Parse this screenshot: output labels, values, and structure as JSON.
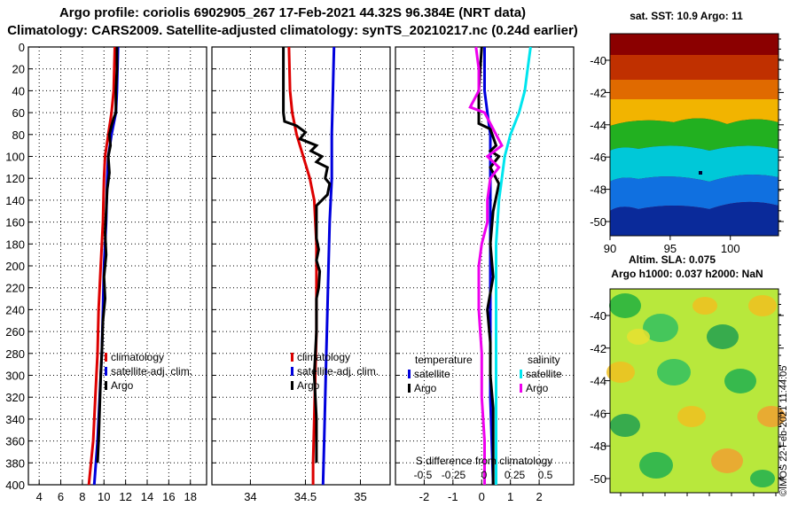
{
  "title_line1": "Argo profile: coriolis 6902905_267 17-Feb-2021 44.32S 96.384E (NRT data)",
  "title_line2": "Climatology: CARS2009. Satellite-adjusted climatology: synTS_20210217.nc (0.24d earlier)",
  "watermark": "©IMOS 22-Feb-2021 11:44:05",
  "colors": {
    "climatology": "#dd0000",
    "satellite": "#0000dd",
    "argo": "#000000",
    "cyan": "#00e5ee",
    "magenta": "#ee00ee"
  },
  "chart_data": [
    {
      "type": "line",
      "name": "temperature-profile",
      "xlim": [
        3,
        19.5
      ],
      "ylim": [
        400,
        0
      ],
      "xticks": [
        4,
        6,
        8,
        10,
        12,
        14,
        16,
        18
      ],
      "yticks": [
        0,
        20,
        40,
        60,
        80,
        100,
        120,
        140,
        160,
        180,
        200,
        220,
        240,
        260,
        280,
        300,
        320,
        340,
        360,
        380,
        400
      ],
      "legend": [
        "climatology",
        "satellite-adj. clim.",
        "Argo"
      ],
      "series": [
        {
          "name": "climatology",
          "color": "#dd0000",
          "points": [
            [
              11,
              0
            ],
            [
              10.9,
              40
            ],
            [
              10.7,
              60
            ],
            [
              10.4,
              80
            ],
            [
              10.1,
              100
            ],
            [
              10,
              120
            ],
            [
              9.9,
              160
            ],
            [
              9.7,
              200
            ],
            [
              9.5,
              240
            ],
            [
              9.4,
              280
            ],
            [
              9.2,
              320
            ],
            [
              9,
              360
            ],
            [
              8.6,
              400
            ]
          ]
        },
        {
          "name": "satellite-adj. clim.",
          "color": "#0000dd",
          "points": [
            [
              11.3,
              0
            ],
            [
              11.2,
              40
            ],
            [
              11.1,
              60
            ],
            [
              10.7,
              80
            ],
            [
              10.4,
              100
            ],
            [
              10.3,
              120
            ],
            [
              10.2,
              160
            ],
            [
              10,
              200
            ],
            [
              9.9,
              240
            ],
            [
              9.8,
              280
            ],
            [
              9.6,
              320
            ],
            [
              9.4,
              360
            ],
            [
              9.1,
              400
            ]
          ]
        },
        {
          "name": "Argo",
          "color": "#000000",
          "points": [
            [
              11.2,
              0
            ],
            [
              11.2,
              20
            ],
            [
              11.1,
              40
            ],
            [
              11.1,
              60
            ],
            [
              10.9,
              65
            ],
            [
              10.7,
              72
            ],
            [
              10.5,
              80
            ],
            [
              10.6,
              90
            ],
            [
              10.4,
              100
            ],
            [
              10.5,
              115
            ],
            [
              10.3,
              130
            ],
            [
              10.2,
              150
            ],
            [
              10.1,
              170
            ],
            [
              10.2,
              190
            ],
            [
              10,
              210
            ],
            [
              10.1,
              230
            ],
            [
              9.9,
              250
            ],
            [
              9.8,
              280
            ],
            [
              9.7,
              300
            ],
            [
              9.6,
              330
            ],
            [
              9.5,
              360
            ],
            [
              9.4,
              380
            ]
          ]
        }
      ]
    },
    {
      "type": "line",
      "name": "salinity-profile",
      "xlim": [
        33.65,
        35.27
      ],
      "ylim": [
        400,
        0
      ],
      "xticks": [
        34,
        34.5,
        35
      ],
      "legend": [
        "climatology",
        "satellite-adj. clim.",
        "Argo"
      ],
      "series": [
        {
          "name": "climatology",
          "color": "#dd0000",
          "points": [
            [
              34.35,
              0
            ],
            [
              34.36,
              40
            ],
            [
              34.38,
              60
            ],
            [
              34.42,
              80
            ],
            [
              34.48,
              100
            ],
            [
              34.54,
              120
            ],
            [
              34.58,
              140
            ],
            [
              34.6,
              180
            ],
            [
              34.6,
              220
            ],
            [
              34.6,
              260
            ],
            [
              34.59,
              300
            ],
            [
              34.58,
              340
            ],
            [
              34.57,
              380
            ],
            [
              34.57,
              400
            ]
          ]
        },
        {
          "name": "satellite-adj. clim.",
          "color": "#0000dd",
          "points": [
            [
              34.76,
              0
            ],
            [
              34.75,
              40
            ],
            [
              34.74,
              80
            ],
            [
              34.74,
              120
            ],
            [
              34.72,
              160
            ],
            [
              34.71,
              200
            ],
            [
              34.7,
              240
            ],
            [
              34.69,
              280
            ],
            [
              34.68,
              320
            ],
            [
              34.67,
              360
            ],
            [
              34.66,
              400
            ]
          ]
        },
        {
          "name": "Argo",
          "color": "#000000",
          "points": [
            [
              34.3,
              0
            ],
            [
              34.3,
              60
            ],
            [
              34.31,
              68
            ],
            [
              34.42,
              72
            ],
            [
              34.5,
              78
            ],
            [
              34.45,
              84
            ],
            [
              34.6,
              90
            ],
            [
              34.55,
              95
            ],
            [
              34.65,
              100
            ],
            [
              34.6,
              105
            ],
            [
              34.7,
              110
            ],
            [
              34.68,
              120
            ],
            [
              34.72,
              125
            ],
            [
              34.7,
              135
            ],
            [
              34.6,
              145
            ],
            [
              34.6,
              160
            ],
            [
              34.6,
              175
            ],
            [
              34.62,
              185
            ],
            [
              34.6,
              195
            ],
            [
              34.63,
              205
            ],
            [
              34.62,
              220
            ],
            [
              34.6,
              230
            ],
            [
              34.6,
              260
            ],
            [
              34.58,
              300
            ],
            [
              34.6,
              340
            ],
            [
              34.6,
              380
            ]
          ]
        }
      ]
    },
    {
      "type": "line",
      "name": "difference-profile",
      "xlim": [
        -3,
        3.2
      ],
      "ylim": [
        400,
        0
      ],
      "xticks": [
        -2,
        -1,
        0,
        1,
        2
      ],
      "x2label": "S difference from climatology",
      "x2ticks": [
        -0.5,
        -0.25,
        0,
        0.25,
        0.5
      ],
      "x2_tick_labels": [
        "-0.5",
        "-0.25",
        "0",
        "0.25",
        "0.5"
      ],
      "legend_temperature": {
        "title": "temperature",
        "items": [
          "satellite",
          "Argo"
        ]
      },
      "legend_salinity": {
        "title": "salinity",
        "items": [
          "satellite",
          "Argo"
        ]
      },
      "series": [
        {
          "name": "temperature satellite",
          "color": "#0000dd",
          "points": [
            [
              0.1,
              0
            ],
            [
              0.1,
              40
            ],
            [
              0.2,
              60
            ],
            [
              0.3,
              80
            ],
            [
              0.3,
              100
            ],
            [
              0.3,
              140
            ],
            [
              0.3,
              200
            ],
            [
              0.3,
              260
            ],
            [
              0.3,
              320
            ],
            [
              0.4,
              400
            ]
          ]
        },
        {
          "name": "temperature Argo",
          "color": "#000000",
          "points": [
            [
              0,
              0
            ],
            [
              -0.1,
              40
            ],
            [
              -0.1,
              60
            ],
            [
              -0.1,
              70
            ],
            [
              0.3,
              75
            ],
            [
              0.5,
              90
            ],
            [
              0.3,
              95
            ],
            [
              0.6,
              100
            ],
            [
              0.3,
              110
            ],
            [
              0.6,
              125
            ],
            [
              0.4,
              150
            ],
            [
              0.3,
              180
            ],
            [
              0.4,
              210
            ],
            [
              0.2,
              240
            ],
            [
              0.3,
              270
            ],
            [
              0.3,
              300
            ],
            [
              0.4,
              330
            ],
            [
              0.4,
              360
            ],
            [
              0.4,
              400
            ]
          ]
        },
        {
          "name": "salinity satellite",
          "color": "#00e5ee",
          "points": [
            [
              1.7,
              0
            ],
            [
              1.6,
              20
            ],
            [
              1.5,
              40
            ],
            [
              1.3,
              60
            ],
            [
              1,
              80
            ],
            [
              0.8,
              100
            ],
            [
              0.7,
              120
            ],
            [
              0.6,
              140
            ],
            [
              0.5,
              180
            ],
            [
              0.5,
              240
            ],
            [
              0.5,
              300
            ],
            [
              0.5,
              360
            ],
            [
              0.5,
              400
            ]
          ]
        },
        {
          "name": "salinity Argo",
          "color": "#ee00ee",
          "points": [
            [
              -0.2,
              0
            ],
            [
              -0.1,
              20
            ],
            [
              -0.1,
              40
            ],
            [
              -0.4,
              55
            ],
            [
              0.1,
              60
            ],
            [
              0.3,
              70
            ],
            [
              0.5,
              80
            ],
            [
              0.7,
              90
            ],
            [
              0.2,
              100
            ],
            [
              0.6,
              110
            ],
            [
              0.3,
              120
            ],
            [
              0.2,
              140
            ],
            [
              0.2,
              160
            ],
            [
              0,
              180
            ],
            [
              -0.1,
              200
            ],
            [
              -0.1,
              220
            ],
            [
              -0.1,
              240
            ],
            [
              0,
              280
            ],
            [
              0,
              320
            ],
            [
              0.1,
              360
            ],
            [
              0.1,
              400
            ]
          ]
        }
      ]
    },
    {
      "type": "heatmap",
      "name": "sst-map",
      "title": "sat. SST: 10.9 Argo: 11",
      "xticks": [
        90,
        95,
        100
      ],
      "yticks": [
        -40,
        -42,
        -44,
        -46,
        -48,
        -50
      ]
    },
    {
      "type": "heatmap",
      "name": "sla-map",
      "title1": "Altim. SLA: 0.075",
      "title2": "Argo h1000: 0.037 h2000: NaN",
      "yticks": [
        -40,
        -42,
        -44,
        -46,
        -48,
        -50
      ]
    }
  ]
}
